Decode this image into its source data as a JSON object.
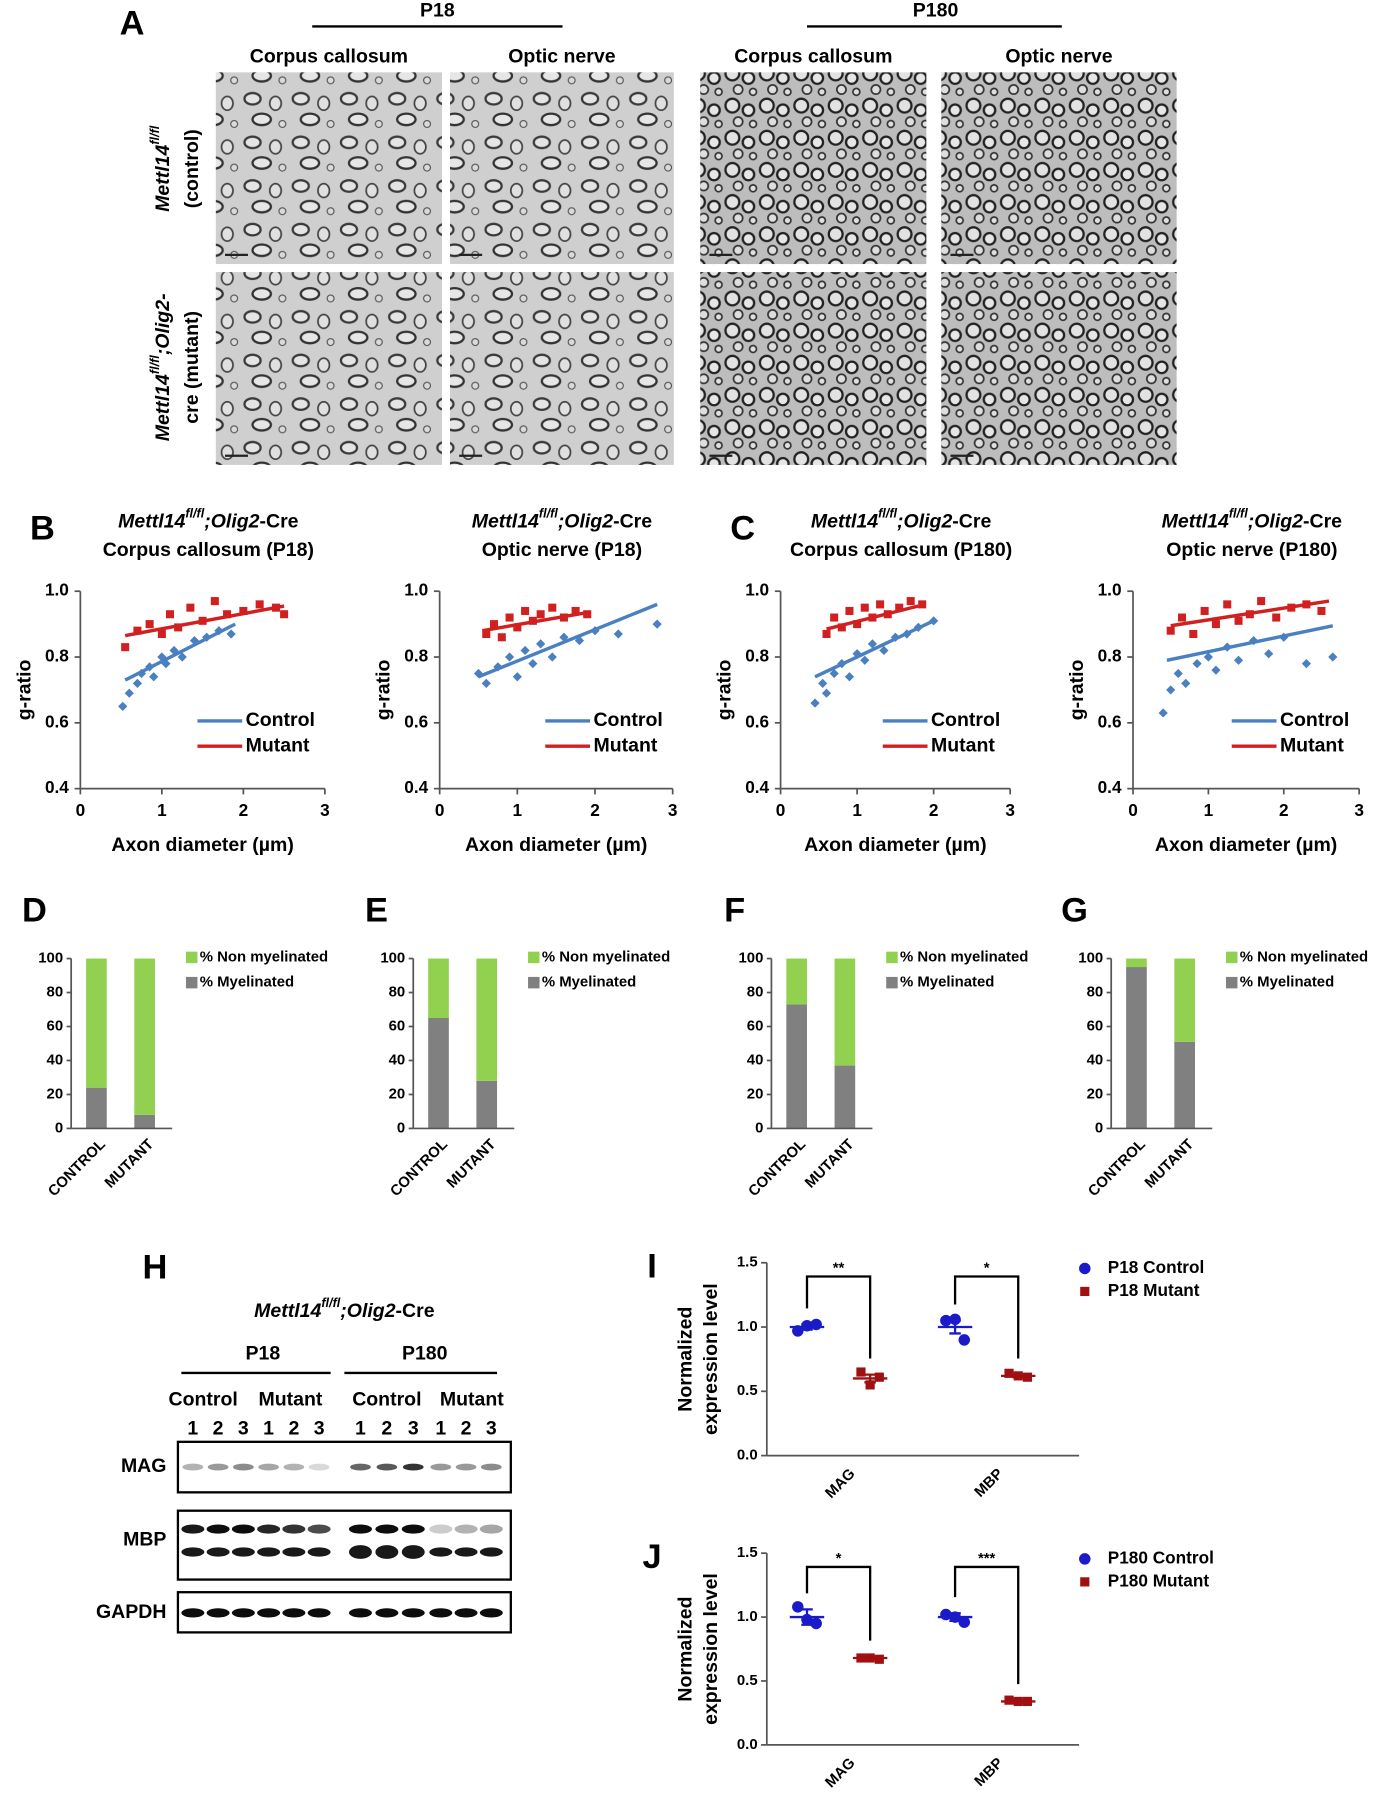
{
  "panel_a": {
    "label": "A",
    "groups": [
      "P18",
      "P180"
    ],
    "columns": [
      "Corpus callosum",
      "Optic nerve",
      "Corpus callosum",
      "Optic nerve"
    ],
    "rows": [
      {
        "gene": "Mettl14",
        "sup": "fl/fl",
        "line2": "(control)"
      },
      {
        "gene": "Mettl14",
        "sup": "fl/fl",
        "rest": ";Olig2-",
        "line2": "cre (mutant)"
      }
    ]
  },
  "chart_data": [
    {
      "type": "scatter",
      "panel": "B",
      "title": [
        "Mettl14",
        "fl/fl",
        ";Olig2",
        "-Cre"
      ],
      "subtitle": "Corpus callosum (P18)",
      "xlabel": "Axon diameter (µm)",
      "ylabel": "g-ratio",
      "xlim": [
        0,
        3
      ],
      "xticks": [
        0,
        1,
        2,
        3
      ],
      "ylim": [
        0.4,
        1
      ],
      "yticks": [
        0.4,
        0.6,
        0.8,
        {
          "value": 1,
          "label": "1.0"
        }
      ],
      "series": [
        {
          "name": "Control",
          "color": "#4a7fc1",
          "marker": "diamond",
          "x": [
            0.52,
            0.6,
            0.7,
            0.75,
            0.85,
            0.9,
            1.0,
            1.05,
            1.15,
            1.25,
            1.4,
            1.55,
            1.7,
            1.85
          ],
          "y": [
            0.65,
            0.69,
            0.72,
            0.75,
            0.77,
            0.74,
            0.8,
            0.78,
            0.82,
            0.8,
            0.85,
            0.86,
            0.88,
            0.87
          ],
          "trend_x": [
            0.55,
            1.9
          ],
          "trend_y": [
            0.73,
            0.9
          ]
        },
        {
          "name": "Mutant",
          "color": "#d02020",
          "marker": "square",
          "x": [
            0.55,
            0.7,
            0.85,
            1.0,
            1.1,
            1.2,
            1.35,
            1.5,
            1.65,
            1.8,
            2.0,
            2.2,
            2.4,
            2.5
          ],
          "y": [
            0.83,
            0.88,
            0.9,
            0.87,
            0.93,
            0.89,
            0.95,
            0.91,
            0.97,
            0.93,
            0.94,
            0.96,
            0.95,
            0.93
          ],
          "trend_x": [
            0.55,
            2.5
          ],
          "trend_y": [
            0.865,
            0.955
          ]
        }
      ]
    },
    {
      "type": "scatter",
      "title": [
        "Mettl14",
        "fl/fl",
        ";Olig2",
        "-Cre"
      ],
      "subtitle": "Optic nerve (P18)",
      "xlabel": "Axon diameter (µm)",
      "ylabel": "g-ratio",
      "xlim": [
        0,
        3
      ],
      "xticks": [
        0,
        1,
        2,
        3
      ],
      "ylim": [
        0.4,
        1
      ],
      "yticks": [
        0.4,
        0.6,
        0.8,
        {
          "value": 1,
          "label": "1.0"
        }
      ],
      "series": [
        {
          "name": "Control",
          "color": "#4a7fc1",
          "marker": "diamond",
          "x": [
            0.5,
            0.6,
            0.75,
            0.9,
            1.0,
            1.1,
            1.2,
            1.3,
            1.45,
            1.6,
            1.8,
            2.0,
            2.3,
            2.8
          ],
          "y": [
            0.75,
            0.72,
            0.77,
            0.8,
            0.74,
            0.82,
            0.78,
            0.84,
            0.8,
            0.86,
            0.85,
            0.88,
            0.87,
            0.9
          ],
          "trend_x": [
            0.5,
            2.8
          ],
          "trend_y": [
            0.74,
            0.96
          ]
        },
        {
          "name": "Mutant",
          "color": "#d02020",
          "marker": "square",
          "x": [
            0.6,
            0.7,
            0.8,
            0.9,
            1.0,
            1.1,
            1.2,
            1.3,
            1.45,
            1.6,
            1.75,
            1.9
          ],
          "y": [
            0.87,
            0.9,
            0.86,
            0.92,
            0.89,
            0.94,
            0.91,
            0.93,
            0.95,
            0.92,
            0.94,
            0.93
          ],
          "trend_x": [
            0.55,
            1.9
          ],
          "trend_y": [
            0.88,
            0.935
          ]
        }
      ]
    },
    {
      "type": "scatter",
      "panel": "C",
      "title": [
        "Mettl14",
        "fl/fl",
        ";Olig2",
        "-Cre"
      ],
      "subtitle": "Corpus callosum (P180)",
      "xlabel": "Axon diameter (µm)",
      "ylabel": "g-ratio",
      "xlim": [
        0,
        3
      ],
      "xticks": [
        0,
        1,
        2,
        3
      ],
      "ylim": [
        0.4,
        1
      ],
      "yticks": [
        0.4,
        0.6,
        0.8,
        {
          "value": 1,
          "label": "1.0"
        }
      ],
      "series": [
        {
          "name": "Control",
          "color": "#4a7fc1",
          "marker": "diamond",
          "x": [
            0.45,
            0.55,
            0.6,
            0.7,
            0.8,
            0.9,
            1.0,
            1.1,
            1.2,
            1.35,
            1.5,
            1.65,
            1.8,
            2.0
          ],
          "y": [
            0.66,
            0.72,
            0.69,
            0.75,
            0.78,
            0.74,
            0.81,
            0.79,
            0.84,
            0.82,
            0.86,
            0.87,
            0.89,
            0.91
          ],
          "trend_x": [
            0.45,
            2.0
          ],
          "trend_y": [
            0.74,
            0.91
          ]
        },
        {
          "name": "Mutant",
          "color": "#d02020",
          "marker": "square",
          "x": [
            0.6,
            0.7,
            0.8,
            0.9,
            1.0,
            1.1,
            1.2,
            1.3,
            1.4,
            1.55,
            1.7,
            1.85
          ],
          "y": [
            0.87,
            0.92,
            0.89,
            0.94,
            0.9,
            0.95,
            0.92,
            0.96,
            0.93,
            0.95,
            0.97,
            0.96
          ],
          "trend_x": [
            0.6,
            1.8
          ],
          "trend_y": [
            0.885,
            0.955
          ]
        }
      ]
    },
    {
      "type": "scatter",
      "title": [
        "Mettl14",
        "fl/fl",
        ";Olig2",
        "-Cre"
      ],
      "subtitle": "Optic nerve (P180)",
      "xlabel": "Axon diameter (µm)",
      "ylabel": "g-ratio",
      "xlim": [
        0,
        3
      ],
      "xticks": [
        0,
        1,
        2,
        3
      ],
      "ylim": [
        0.4,
        1
      ],
      "yticks": [
        0.4,
        0.6,
        0.8,
        {
          "value": 1,
          "label": "1.0"
        }
      ],
      "series": [
        {
          "name": "Control",
          "color": "#4a7fc1",
          "marker": "diamond",
          "x": [
            0.4,
            0.5,
            0.6,
            0.7,
            0.85,
            1.0,
            1.1,
            1.25,
            1.4,
            1.6,
            1.8,
            2.0,
            2.3,
            2.65
          ],
          "y": [
            0.63,
            0.7,
            0.75,
            0.72,
            0.78,
            0.8,
            0.76,
            0.83,
            0.79,
            0.85,
            0.81,
            0.86,
            0.78,
            0.8
          ],
          "trend_x": [
            0.45,
            2.65
          ],
          "trend_y": [
            0.79,
            0.895
          ]
        },
        {
          "name": "Mutant",
          "color": "#d02020",
          "marker": "square",
          "x": [
            0.5,
            0.65,
            0.8,
            0.95,
            1.1,
            1.25,
            1.4,
            1.55,
            1.7,
            1.9,
            2.1,
            2.3,
            2.5
          ],
          "y": [
            0.88,
            0.92,
            0.87,
            0.94,
            0.9,
            0.96,
            0.91,
            0.93,
            0.97,
            0.92,
            0.95,
            0.96,
            0.94
          ],
          "trend_x": [
            0.5,
            2.6
          ],
          "trend_y": [
            0.895,
            0.97
          ]
        }
      ]
    },
    {
      "type": "stacked_bar",
      "panel": "D",
      "categories": [
        "CONTROL",
        "MUTANT"
      ],
      "ylim": [
        0,
        100
      ],
      "yticks": [
        0,
        20,
        40,
        60,
        80,
        100
      ],
      "series": [
        {
          "name": "%  Myelinated",
          "color": "#808080",
          "values": [
            24,
            8
          ]
        },
        {
          "name": "% Non myelinated",
          "color": "#92d050",
          "values": [
            76,
            92
          ]
        }
      ]
    },
    {
      "type": "stacked_bar",
      "panel": "E",
      "categories": [
        "CONTROL",
        "MUTANT"
      ],
      "ylim": [
        0,
        100
      ],
      "yticks": [
        0,
        20,
        40,
        60,
        80,
        100
      ],
      "series": [
        {
          "name": "%  Myelinated",
          "color": "#808080",
          "values": [
            65,
            28
          ]
        },
        {
          "name": "% Non myelinated",
          "color": "#92d050",
          "values": [
            35,
            72
          ]
        }
      ]
    },
    {
      "type": "stacked_bar",
      "panel": "F",
      "categories": [
        "CONTROL",
        "MUTANT"
      ],
      "ylim": [
        0,
        100
      ],
      "yticks": [
        0,
        20,
        40,
        60,
        80,
        100
      ],
      "series": [
        {
          "name": "%  Myelinated",
          "color": "#808080",
          "values": [
            73,
            37
          ]
        },
        {
          "name": "% Non myelinated",
          "color": "#92d050",
          "values": [
            27,
            63
          ]
        }
      ]
    },
    {
      "type": "stacked_bar",
      "panel": "G",
      "categories": [
        "CONTROL",
        "MUTANT"
      ],
      "ylim": [
        0,
        100
      ],
      "yticks": [
        0,
        20,
        40,
        60,
        80,
        100
      ],
      "series": [
        {
          "name": "%  Myelinated",
          "color": "#808080",
          "values": [
            95,
            51
          ]
        },
        {
          "name": "% Non myelinated",
          "color": "#92d050",
          "values": [
            5,
            49
          ]
        }
      ]
    },
    {
      "type": "dot",
      "panel": "I",
      "categories": [
        "MAG",
        "MBP"
      ],
      "ylabel": [
        "Normalized",
        "expression level"
      ],
      "ylim": [
        0,
        1.5
      ],
      "yticks": [
        {
          "value": 0,
          "label": "0.0"
        },
        0.5,
        {
          "value": 1,
          "label": "1.0"
        },
        1.5
      ],
      "series": [
        {
          "name": "P18 Control",
          "color": "#1a1ac8",
          "marker": "circle",
          "values": [
            [
              0.97,
              1.02,
              1.01
            ],
            [
              1.05,
              0.9,
              1.06
            ]
          ],
          "means": [
            1.0,
            1.0
          ],
          "errors": [
            0.02,
            0.05
          ]
        },
        {
          "name": "P18 Mutant",
          "color": "#a01010",
          "marker": "square",
          "values": [
            [
              0.65,
              0.61,
              0.55
            ],
            [
              0.64,
              0.61,
              0.62
            ]
          ],
          "means": [
            0.6,
            0.62
          ],
          "errors": [
            0.03,
            0.01
          ]
        }
      ],
      "annotations": [
        "**",
        "*"
      ]
    },
    {
      "type": "dot",
      "panel": "J",
      "categories": [
        "MAG",
        "MBP"
      ],
      "ylabel": [
        "Normalized",
        "expression level"
      ],
      "ylim": [
        0,
        1.5
      ],
      "yticks": [
        {
          "value": 0,
          "label": "0.0"
        },
        0.5,
        {
          "value": 1,
          "label": "1.0"
        },
        1.5
      ],
      "series": [
        {
          "name": "P180 Control",
          "color": "#1a1ac8",
          "marker": "circle",
          "values": [
            [
              1.08,
              0.95,
              0.98
            ],
            [
              1.02,
              0.96,
              1.0
            ]
          ],
          "means": [
            1.0,
            1.0
          ],
          "errors": [
            0.06,
            0.03
          ]
        },
        {
          "name": "P180 Mutant",
          "color": "#a01010",
          "marker": "square",
          "values": [
            [
              0.68,
              0.67,
              0.68
            ],
            [
              0.35,
              0.34,
              0.34
            ]
          ],
          "means": [
            0.68,
            0.34
          ],
          "errors": [
            0.01,
            0.01
          ]
        }
      ],
      "annotations": [
        "*",
        "***"
      ]
    }
  ],
  "panel_h": {
    "label": "H",
    "title": [
      "Mettl14",
      "fl/fl",
      ";Olig2",
      "-Cre"
    ],
    "ages": [
      "P18",
      "P180"
    ],
    "groups": [
      "Control",
      "Mutant",
      "Control",
      "Mutant"
    ],
    "lanes": [
      "1",
      "2",
      "3",
      "1",
      "2",
      "3",
      "1",
      "2",
      "3",
      "1",
      "2",
      "3"
    ],
    "proteins": [
      "MAG",
      "MBP",
      "GAPDH"
    ]
  }
}
